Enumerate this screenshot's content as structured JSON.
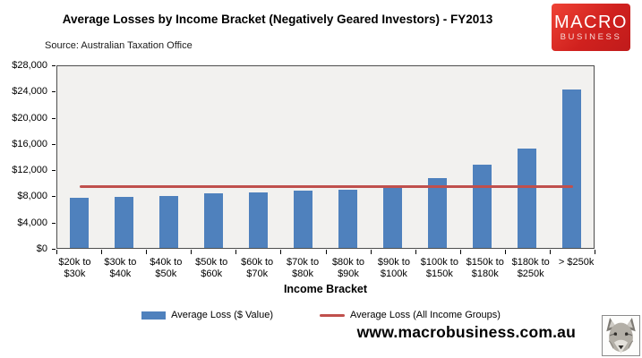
{
  "header": {
    "title": "Average Losses by Income Bracket (Negatively Geared Investors) - FY2013",
    "source": "Source: Australian Taxation Office",
    "logo": {
      "line1": "MACRO",
      "line2": "BUSINESS",
      "bg_color": "#d0211e",
      "text_color": "#ffffff"
    }
  },
  "chart_data": {
    "type": "bar",
    "title": "Average Losses by Income Bracket (Negatively Geared Investors) - FY2013",
    "xlabel": "Income Bracket",
    "ylabel": "",
    "ylim": [
      0,
      28000
    ],
    "ytick_step": 4000,
    "ytick_labels": [
      "$0",
      "$4,000",
      "$8,000",
      "$12,000",
      "$16,000",
      "$20,000",
      "$24,000",
      "$28,000"
    ],
    "grid": false,
    "plot_bg_color": "#f2f1ef",
    "legend_position": "bottom",
    "categories": [
      {
        "l1": "$20k to",
        "l2": "$30k"
      },
      {
        "l1": "$30k to",
        "l2": "$40k"
      },
      {
        "l1": "$40k to",
        "l2": "$50k"
      },
      {
        "l1": "$50k to",
        "l2": "$60k"
      },
      {
        "l1": "$60k to",
        "l2": "$70k"
      },
      {
        "l1": "$70k to",
        "l2": "$80k"
      },
      {
        "l1": "$80k to",
        "l2": "$90k"
      },
      {
        "l1": "$90k to",
        "l2": "$100k"
      },
      {
        "l1": "$100k to",
        "l2": "$150k"
      },
      {
        "l1": "$150k to",
        "l2": "$180k"
      },
      {
        "l1": "$180k to",
        "l2": "$250k"
      },
      {
        "l1": "> $250k",
        "l2": ""
      }
    ],
    "series": [
      {
        "name": "Average Loss ($ Value)",
        "color": "#4f81bd",
        "values": [
          7600,
          7800,
          7950,
          8300,
          8500,
          8700,
          8900,
          9200,
          10700,
          12700,
          15200,
          24200
        ]
      }
    ],
    "reference_line": {
      "name": "Average Loss (All Income Groups)",
      "color": "#c0504d",
      "value": 9500
    }
  },
  "legend": {
    "items": [
      {
        "label": "Average Loss ($ Value)",
        "swatch": "bar",
        "color": "#4f81bd"
      },
      {
        "label": "Average Loss (All Income Groups)",
        "swatch": "line",
        "color": "#c0504d"
      }
    ]
  },
  "footer": {
    "website": "www.macrobusiness.com.au",
    "logo_icon": "wolf-icon"
  }
}
